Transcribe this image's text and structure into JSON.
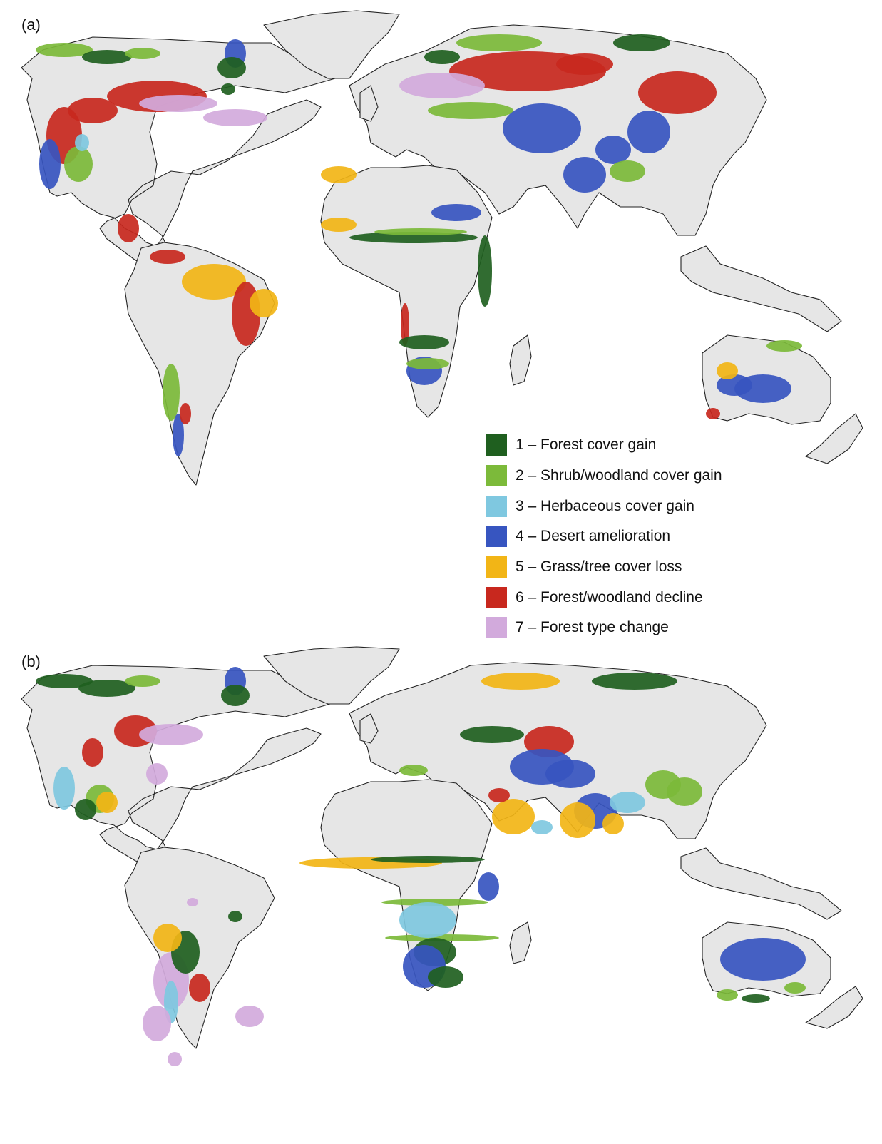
{
  "panels": [
    {
      "label": "(a)"
    },
    {
      "label": "(b)"
    }
  ],
  "legend": {
    "items": [
      {
        "label": "1 – Forest cover gain",
        "color": "#1f5f1f"
      },
      {
        "label": "2 – Shrub/woodland cover gain",
        "color": "#7cba3a"
      },
      {
        "label": "3 – Herbaceous cover gain",
        "color": "#7fc8e0"
      },
      {
        "label": "4 – Desert amelioration",
        "color": "#3755c0"
      },
      {
        "label": "5 – Grass/tree cover loss",
        "color": "#f2b516"
      },
      {
        "label": "6 – Forest/woodland decline",
        "color": "#c8281e"
      },
      {
        "label": "7 – Forest type change",
        "color": "#d2aadc"
      }
    ]
  },
  "land_color": "#e6e6e6"
}
